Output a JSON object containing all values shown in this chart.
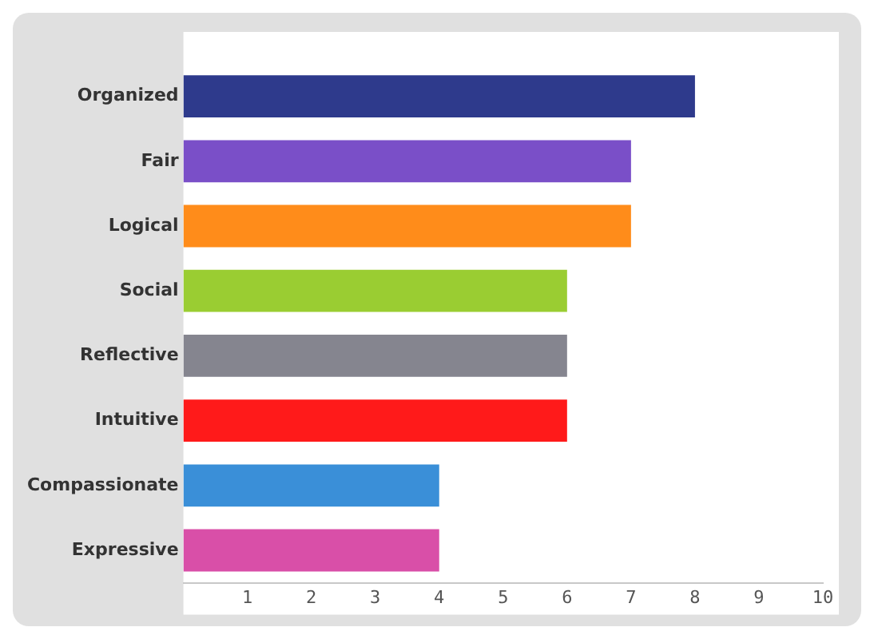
{
  "chart_data": {
    "type": "bar",
    "orientation": "horizontal",
    "categories": [
      "Organized",
      "Fair",
      "Logical",
      "Social",
      "Reflective",
      "Intuitive",
      "Compassionate",
      "Expressive"
    ],
    "values": [
      8,
      7,
      7,
      6,
      6,
      6,
      4,
      4
    ],
    "colors": [
      "#2e3a8c",
      "#7a4fc8",
      "#ff8c1a",
      "#9acd32",
      "#85858f",
      "#ff1a1a",
      "#3a8fd8",
      "#d94fa8"
    ],
    "xlim": [
      0,
      10
    ],
    "xticks": [
      1,
      2,
      3,
      4,
      5,
      6,
      7,
      8,
      9,
      10
    ],
    "grid": false,
    "legend": false
  }
}
